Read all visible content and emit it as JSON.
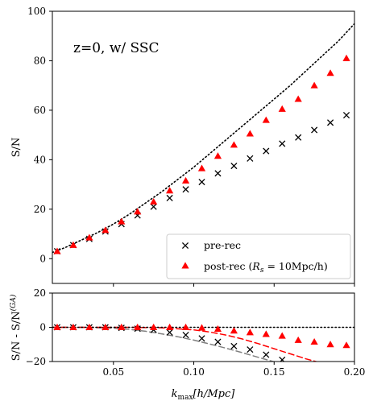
{
  "chart_data": [
    {
      "type": "scatter",
      "annotation": "z=0, w/ SSC",
      "ylabel": "S/N",
      "xlim": [
        0.012,
        0.2
      ],
      "ylim": [
        -10,
        100
      ],
      "x_ticks": [
        0.05,
        0.1,
        0.15,
        0.2
      ],
      "y_ticks": [
        0,
        20,
        40,
        60,
        80,
        100
      ],
      "y_tick_labels": [
        "0",
        "20",
        "40",
        "60",
        "80",
        "100"
      ],
      "legend_position": "lower-right",
      "series": [
        {
          "name": "pre-rec",
          "marker": "x",
          "color": "#000000",
          "x": [
            0.015,
            0.025,
            0.035,
            0.045,
            0.055,
            0.065,
            0.075,
            0.085,
            0.095,
            0.105,
            0.115,
            0.125,
            0.135,
            0.145,
            0.155,
            0.165,
            0.175,
            0.185,
            0.195
          ],
          "y": [
            3,
            5.5,
            8,
            11,
            14,
            17.5,
            21,
            24.5,
            28,
            31,
            34.5,
            37.5,
            40.5,
            43.5,
            46.5,
            49,
            52,
            55,
            58
          ]
        },
        {
          "name": "post-rec ($R_s$ = 10Mpc/h)",
          "legend_parts": [
            "post-rec (",
            "R",
            "s",
            " = 10Mpc/h)"
          ],
          "marker": "triangle",
          "color": "#ff0000",
          "x": [
            0.015,
            0.025,
            0.035,
            0.045,
            0.055,
            0.065,
            0.075,
            0.085,
            0.095,
            0.105,
            0.115,
            0.125,
            0.135,
            0.145,
            0.155,
            0.165,
            0.175,
            0.185,
            0.195
          ],
          "y": [
            3,
            5.5,
            8.5,
            11.5,
            15,
            19,
            23,
            27.5,
            31.5,
            36.5,
            41.5,
            46,
            50.5,
            56,
            60.5,
            64.5,
            70,
            75,
            81
          ]
        },
        {
          "name": "",
          "style": "dotted-line",
          "color": "#000000",
          "x": [
            0.012,
            0.02,
            0.03,
            0.04,
            0.05,
            0.06,
            0.07,
            0.08,
            0.09,
            0.1,
            0.11,
            0.12,
            0.13,
            0.14,
            0.15,
            0.16,
            0.17,
            0.18,
            0.19,
            0.2
          ],
          "y": [
            2.5,
            4.5,
            7.5,
            10.5,
            14,
            18,
            22.5,
            27,
            32,
            37,
            42.5,
            48,
            53.5,
            59,
            64.5,
            70,
            76,
            82,
            88,
            95
          ]
        }
      ]
    },
    {
      "type": "scatter",
      "xlabel_parts": [
        "k",
        "max",
        "[h/Mpc]"
      ],
      "ylabel_parts": [
        "S/N - S/N",
        "(GA)"
      ],
      "xlim": [
        0.012,
        0.2
      ],
      "ylim": [
        -20,
        20
      ],
      "x_ticks": [
        0.05,
        0.1,
        0.15,
        0.2
      ],
      "x_tick_labels": [
        "0.05",
        "0.10",
        "0.15",
        "0.20"
      ],
      "y_ticks": [
        -20,
        0,
        20
      ],
      "y_tick_labels": [
        "−20",
        "0",
        "20"
      ],
      "series": [
        {
          "name": "pre-rec",
          "marker": "x",
          "color": "#000000",
          "x": [
            0.015,
            0.025,
            0.035,
            0.045,
            0.055,
            0.065,
            0.075,
            0.085,
            0.095,
            0.105,
            0.115,
            0.125,
            0.135,
            0.145,
            0.155
          ],
          "y": [
            0,
            0,
            0,
            0,
            -0.3,
            -0.8,
            -1.5,
            -3,
            -4.5,
            -6.5,
            -8.5,
            -11,
            -13,
            -16,
            -19
          ]
        },
        {
          "name": "post-rec",
          "marker": "triangle",
          "color": "#ff0000",
          "x": [
            0.015,
            0.025,
            0.035,
            0.045,
            0.055,
            0.065,
            0.075,
            0.085,
            0.095,
            0.105,
            0.115,
            0.125,
            0.135,
            0.145,
            0.155,
            0.165,
            0.175,
            0.185,
            0.195
          ],
          "y": [
            0,
            0,
            0,
            0,
            0,
            0,
            0,
            0,
            0,
            -0.3,
            -1,
            -2,
            -3,
            -4,
            -5,
            -7.5,
            -8.5,
            -10,
            -10.5
          ]
        },
        {
          "name": "",
          "style": "dashed-line",
          "color": "#808080",
          "x": [
            0.012,
            0.03,
            0.05,
            0.06,
            0.07,
            0.08,
            0.09,
            0.1,
            0.11,
            0.12,
            0.13,
            0.14,
            0.15,
            0.16
          ],
          "y": [
            0,
            0,
            -0.5,
            -1.2,
            -2.3,
            -3.8,
            -5.5,
            -7.5,
            -9.8,
            -12.2,
            -14.8,
            -17.5,
            -20.2,
            -23
          ]
        },
        {
          "name": "",
          "style": "dashed-line",
          "color": "#ff0000",
          "x": [
            0.012,
            0.06,
            0.08,
            0.1,
            0.11,
            0.12,
            0.13,
            0.14,
            0.15,
            0.16,
            0.17,
            0.18,
            0.19
          ],
          "y": [
            0,
            0,
            -0.3,
            -1.5,
            -2.8,
            -4.5,
            -6.8,
            -9.5,
            -12.5,
            -15.5,
            -18.5,
            -21,
            -23
          ]
        },
        {
          "name": "",
          "style": "dotted-line",
          "color": "#000000",
          "x": [
            0.012,
            0.2
          ],
          "y": [
            0,
            0
          ]
        }
      ]
    }
  ]
}
